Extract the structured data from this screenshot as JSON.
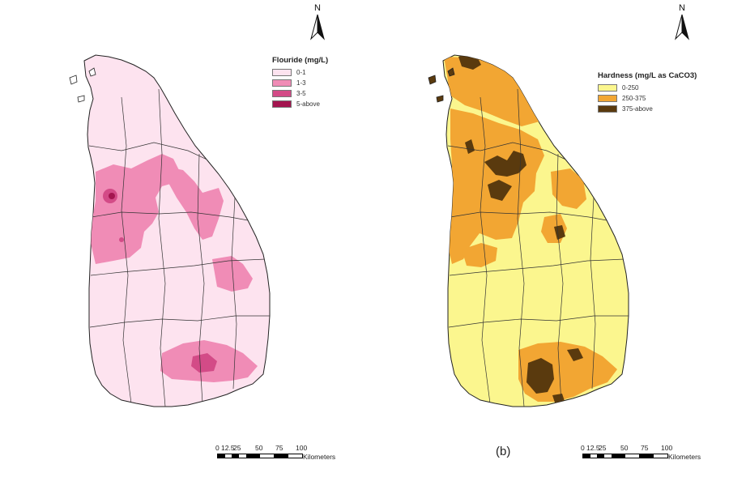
{
  "left_map": {
    "legend": {
      "title": "Flouride (mg/L)",
      "items": [
        {
          "label": "0-1",
          "color": "#fde3ef"
        },
        {
          "label": "1-3",
          "color": "#f08cb6"
        },
        {
          "label": "3-5",
          "color": "#d34b87"
        },
        {
          "label": "5-above",
          "color": "#a3154f"
        }
      ]
    },
    "north_label": "N",
    "scale": {
      "ticks": [
        "0",
        "12.5",
        "25",
        "50",
        "75",
        "100"
      ],
      "units": "Kilometers"
    }
  },
  "right_map": {
    "legend": {
      "title": "Hardness (mg/L as CaCO3)",
      "items": [
        {
          "label": "0-250",
          "color": "#fbf68e"
        },
        {
          "label": "250-375",
          "color": "#f2a633"
        },
        {
          "label": "375-above",
          "color": "#5a3a0e"
        }
      ]
    },
    "north_label": "N",
    "scale": {
      "ticks": [
        "0",
        "12.5",
        "25",
        "50",
        "75",
        "100"
      ],
      "units": "Kilometers"
    },
    "panel_label": "(b)"
  },
  "colors": {
    "boundary": "#333333"
  }
}
